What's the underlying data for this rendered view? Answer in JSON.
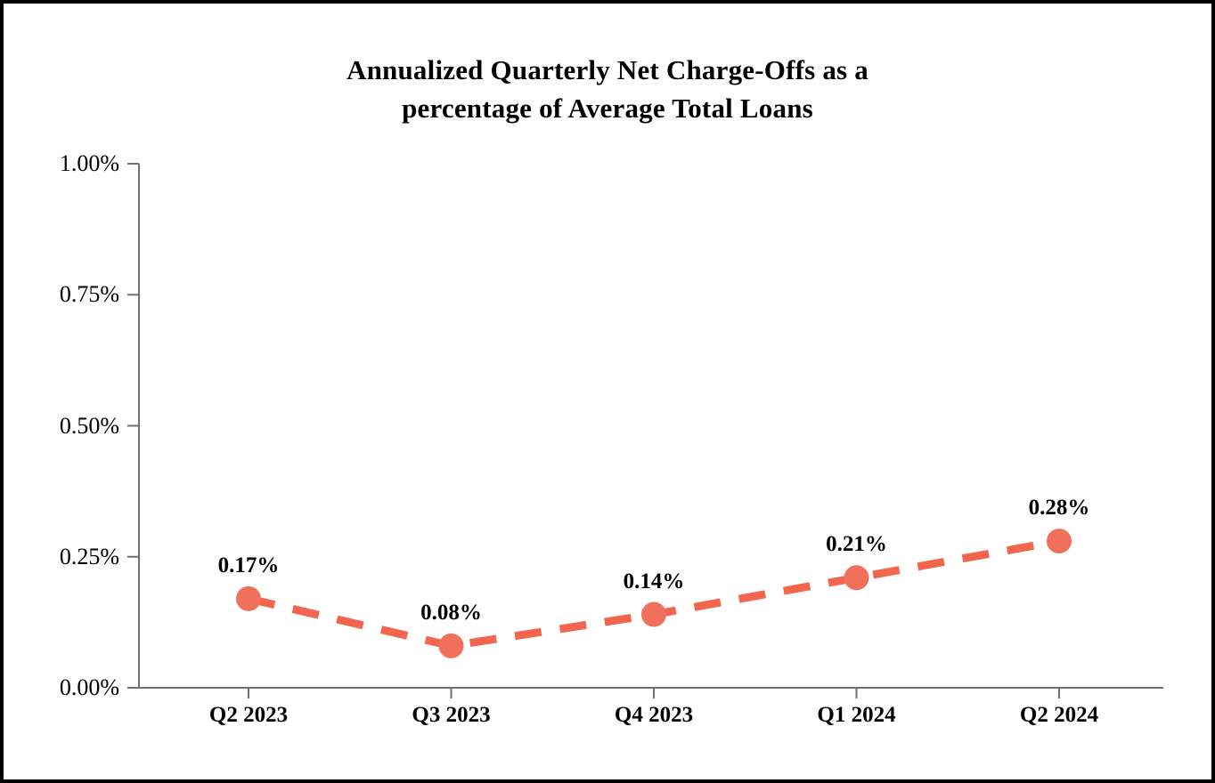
{
  "chart_data": {
    "type": "line",
    "title": "Annualized Quarterly Net Charge-Offs as a\npercentage of Average Total Loans",
    "categories": [
      "Q2 2023",
      "Q3 2023",
      "Q4 2023",
      "Q1 2024",
      "Q2 2024"
    ],
    "series": [
      {
        "values": [
          0.17,
          0.08,
          0.14,
          0.21,
          0.28
        ],
        "data_labels": [
          "0.17%",
          "0.08%",
          "0.14%",
          "0.21%",
          "0.28%"
        ]
      }
    ],
    "xlabel": "",
    "ylabel": "",
    "ylim": [
      0.0,
      1.0
    ],
    "y_tick_values": [
      1.0,
      0.75,
      0.5,
      0.25,
      0.0
    ],
    "y_tick_labels": [
      "1.00%",
      "0.75%",
      "0.50%",
      "0.25%",
      "0.00%"
    ],
    "grid": "off",
    "legend": "none",
    "line_style": "dashed",
    "marker": "circle",
    "colors": {
      "line": "#F2664D",
      "marker": "#F0705C",
      "axis": "#6F6F6F",
      "text": "#000000",
      "background": "#FFFFFF",
      "frame_border": "#000000"
    }
  }
}
